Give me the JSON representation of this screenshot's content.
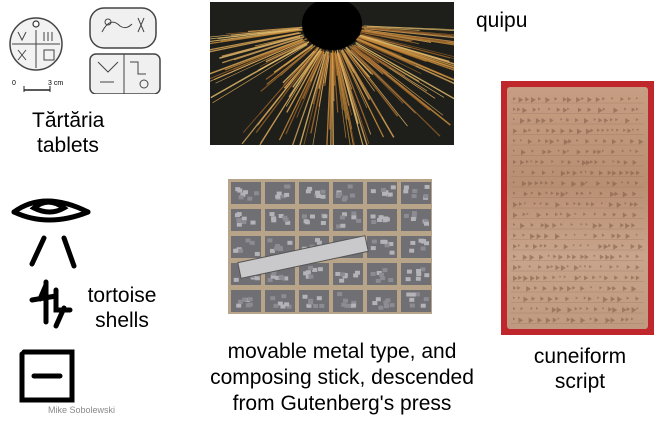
{
  "labels": {
    "tartaria_line1": "Tărtăria",
    "tartaria_line2": "tablets",
    "quipu": "quipu",
    "cuneiform_line1": "cuneiform",
    "cuneiform_line2": "script",
    "tortoise_line1": "tortoise",
    "tortoise_line2": "shells",
    "movable_line1": "movable metal type, and",
    "movable_line2": "composing stick, descended",
    "movable_line3": "from Gutenberg's press"
  },
  "scale_bar": {
    "zero": "0",
    "unit": "3 cm"
  },
  "credit": "Mike Sobolewski"
}
